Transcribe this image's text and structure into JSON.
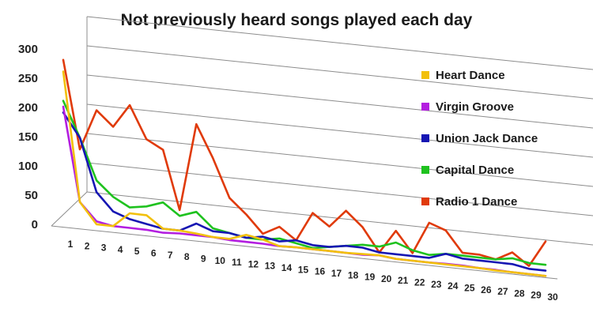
{
  "chart_data": {
    "type": "line",
    "title": "Not previously heard songs played each day",
    "xlabel": "",
    "ylabel": "",
    "ylim": [
      0,
      300
    ],
    "yticks": [
      0,
      50,
      100,
      150,
      200,
      250,
      300
    ],
    "categories": [
      1,
      2,
      3,
      4,
      5,
      6,
      7,
      8,
      9,
      10,
      11,
      12,
      13,
      14,
      15,
      16,
      17,
      18,
      19,
      20,
      21,
      22,
      23,
      24,
      25,
      26,
      27,
      28,
      29,
      30
    ],
    "grid": true,
    "legend_position": "right",
    "series": [
      {
        "name": "Heart Dance",
        "color": "#F2C00B",
        "values": [
          260,
          40,
          5,
          5,
          30,
          30,
          10,
          10,
          8,
          5,
          5,
          15,
          10,
          2,
          3,
          3,
          3,
          3,
          4,
          5,
          2,
          2,
          2,
          2,
          2,
          2,
          1,
          1,
          1,
          1
        ]
      },
      {
        "name": "Virgin Groove",
        "color": "#B31EE0",
        "values": [
          200,
          40,
          10,
          5,
          5,
          5,
          3,
          5,
          5,
          5,
          3,
          3,
          3,
          2,
          3,
          3,
          3,
          3,
          3,
          5,
          2,
          2,
          2,
          3,
          3,
          2,
          2,
          1,
          1,
          1
        ]
      },
      {
        "name": "Union Jack Dance",
        "color": "#1616B3",
        "values": [
          190,
          150,
          60,
          30,
          20,
          15,
          10,
          10,
          25,
          15,
          15,
          10,
          15,
          10,
          15,
          10,
          10,
          15,
          15,
          10,
          10,
          10,
          10,
          20,
          15,
          15,
          15,
          15,
          10,
          10
        ]
      },
      {
        "name": "Capital Dance",
        "color": "#1FC21F",
        "values": [
          210,
          150,
          80,
          55,
          40,
          45,
          55,
          35,
          45,
          20,
          15,
          10,
          10,
          15,
          10,
          5,
          10,
          15,
          20,
          20,
          30,
          20,
          15,
          20,
          20,
          20,
          20,
          25,
          20,
          20
        ]
      },
      {
        "name": "Radio 1 Dance",
        "color": "#E03A0A",
        "values": [
          280,
          130,
          200,
          175,
          215,
          160,
          145,
          45,
          195,
          140,
          75,
          50,
          20,
          35,
          15,
          65,
          45,
          75,
          50,
          10,
          50,
          15,
          70,
          60,
          25,
          25,
          20,
          35,
          15,
          60
        ]
      }
    ]
  }
}
